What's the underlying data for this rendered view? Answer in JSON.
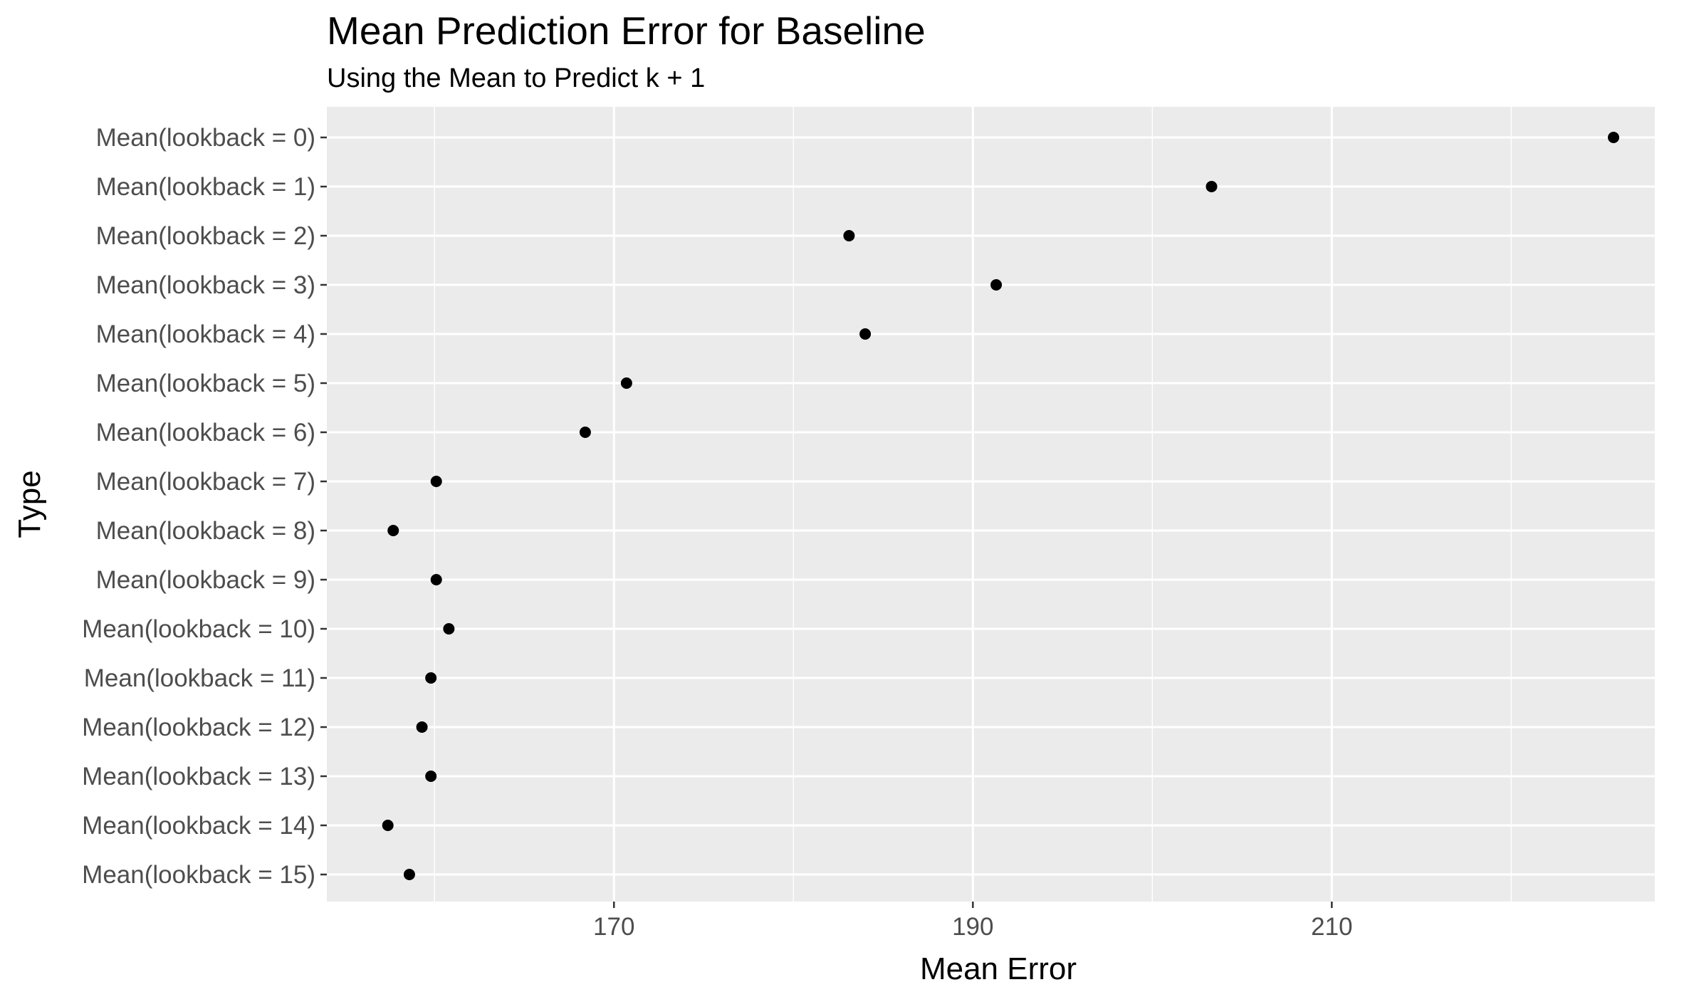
{
  "chart_data": {
    "type": "scatter",
    "title": "Mean Prediction Error for Baseline",
    "subtitle": "Using the Mean to Predict k + 1",
    "xlabel": "Mean Error",
    "ylabel": "Type",
    "xlim": [
      154,
      228
    ],
    "x_ticks": [
      170,
      190,
      210
    ],
    "x_tick_labels": [
      "170",
      "190",
      "210"
    ],
    "x_minor_ticks": [
      160,
      180,
      200,
      220
    ],
    "grid": true,
    "point_color": "#000000",
    "panel_color": "#ebebeb",
    "categories": [
      "Mean(lookback = 0)",
      "Mean(lookback = 1)",
      "Mean(lookback = 2)",
      "Mean(lookback = 3)",
      "Mean(lookback = 4)",
      "Mean(lookback = 5)",
      "Mean(lookback = 6)",
      "Mean(lookback = 7)",
      "Mean(lookback = 8)",
      "Mean(lookback = 9)",
      "Mean(lookback = 10)",
      "Mean(lookback = 11)",
      "Mean(lookback = 12)",
      "Mean(lookback = 13)",
      "Mean(lookback = 14)",
      "Mean(lookback = 15)"
    ],
    "values": [
      225.7,
      203.3,
      183.1,
      191.3,
      184.0,
      170.7,
      168.4,
      160.1,
      157.7,
      160.1,
      160.8,
      159.8,
      159.3,
      159.8,
      157.4,
      158.6
    ]
  }
}
